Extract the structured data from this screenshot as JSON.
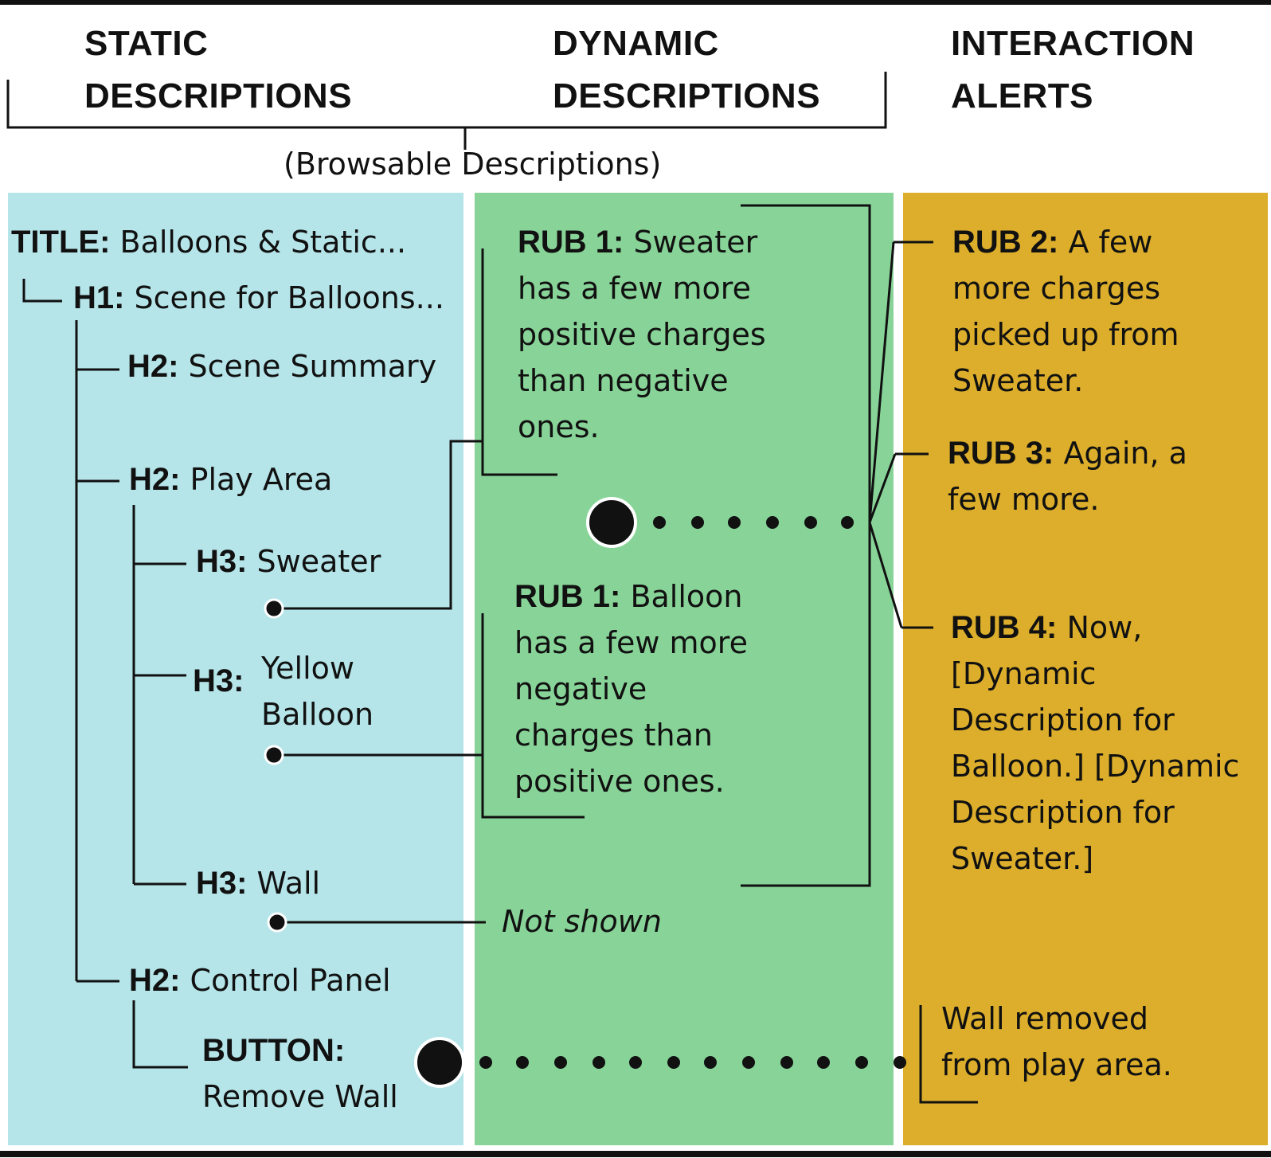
{
  "headers": {
    "static": [
      "STATIC",
      "DESCRIPTIONS"
    ],
    "dynamic": [
      "DYNAMIC",
      "DESCRIPTIONS"
    ],
    "alerts": [
      "INTERACTION",
      "ALERTS"
    ],
    "browsable": "(Browsable Descriptions)"
  },
  "colors": {
    "static": "#b5e5e9",
    "dynamic": "#88d498",
    "alerts": "#dcae2b"
  },
  "tree": {
    "title": {
      "label": "TITLE:",
      "text": "Balloons & Static..."
    },
    "h1": {
      "label": "H1:",
      "text": "Scene for Balloons..."
    },
    "scene_summary": {
      "label": "H2:",
      "text": "Scene Summary"
    },
    "play_area": {
      "label": "H2:",
      "text": "Play Area"
    },
    "sweater": {
      "label": "H3:",
      "text": "Sweater"
    },
    "yellow_balloon": {
      "label": "H3:",
      "text": [
        "Yellow",
        "Balloon"
      ]
    },
    "wall": {
      "label": "H3:",
      "text": "Wall"
    },
    "control_panel": {
      "label": "H2:",
      "text": "Control Panel"
    },
    "button": {
      "label": "BUTTON:",
      "text": "Remove Wall"
    }
  },
  "dynamic": {
    "sweater_desc": {
      "label": "RUB 1:",
      "lines": [
        "Sweater",
        "has a few more",
        "positive charges",
        "than negative",
        "ones."
      ]
    },
    "balloon_desc": {
      "label": "RUB 1:",
      "lines": [
        "Balloon",
        "has a few more",
        "negative",
        "charges than",
        "positive ones."
      ]
    },
    "not_shown": "Not shown"
  },
  "alerts": {
    "rub2": {
      "label": "RUB 2:",
      "lines": [
        "A few",
        "more charges",
        "picked up from",
        "Sweater."
      ]
    },
    "rub3": {
      "label": "RUB 3:",
      "lines": [
        "Again, a",
        "few more."
      ]
    },
    "rub4": {
      "label": "RUB 4:",
      "lines": [
        "Now,",
        "[Dynamic",
        "Description for",
        "Balloon.] [Dynamic",
        "Description for",
        "Sweater.]"
      ]
    },
    "wall_removed": [
      "Wall removed",
      "from play area."
    ]
  }
}
